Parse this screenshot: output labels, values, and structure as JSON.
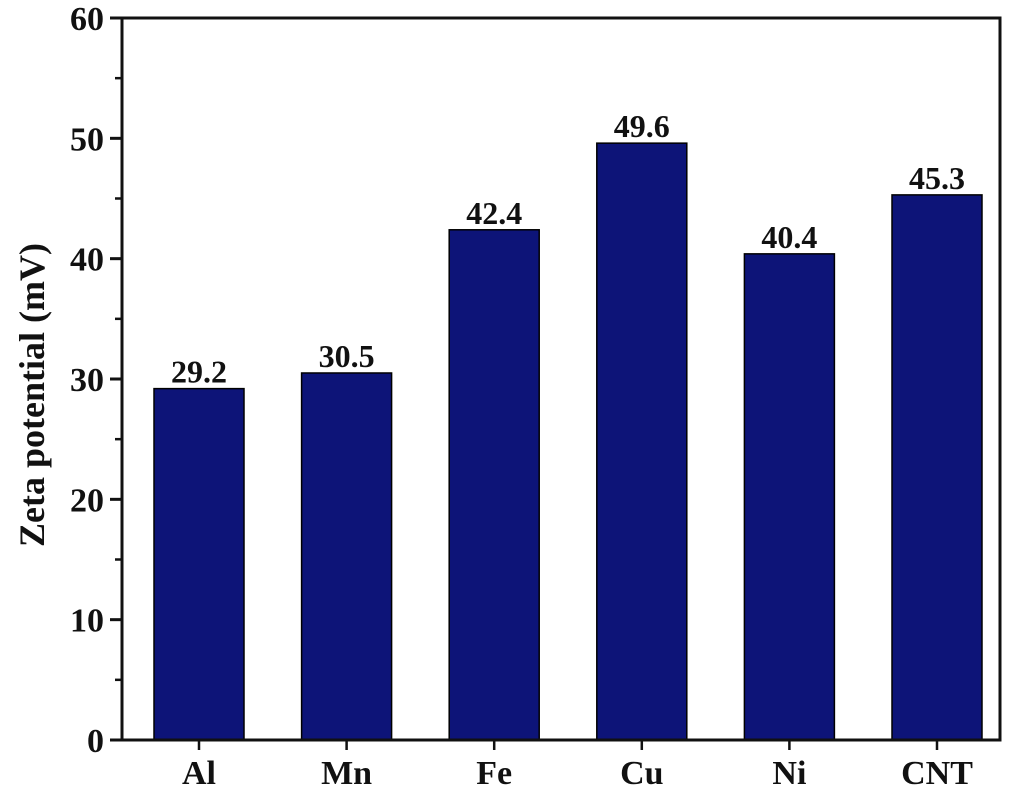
{
  "chart_data": {
    "type": "bar",
    "categories": [
      "Al",
      "Mn",
      "Fe",
      "Cu",
      "Ni",
      "CNT"
    ],
    "values": [
      29.2,
      30.5,
      42.4,
      49.6,
      40.4,
      45.3
    ],
    "data_labels": [
      "29.2",
      "30.5",
      "42.4",
      "49.6",
      "40.4",
      "45.3"
    ],
    "title": "",
    "xlabel": "",
    "ylabel": "Zeta potential (mV)",
    "ylim": [
      0,
      60
    ],
    "yticks": [
      0,
      10,
      20,
      30,
      40,
      50,
      60
    ],
    "grid": false,
    "legend": "none",
    "colors": {
      "bar": "#0d1478",
      "axis": "#111111"
    }
  }
}
